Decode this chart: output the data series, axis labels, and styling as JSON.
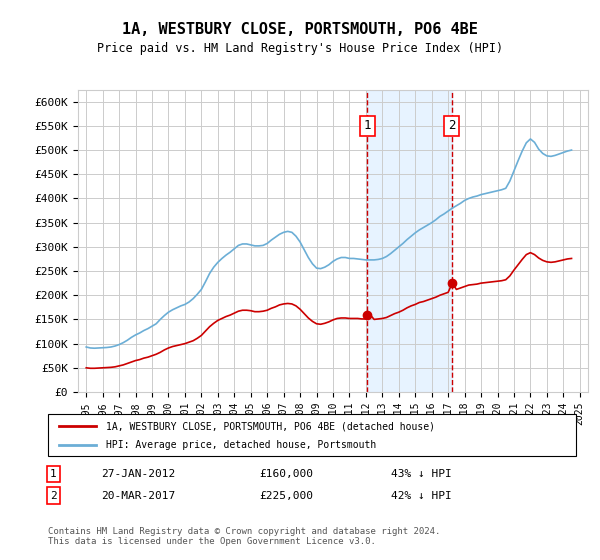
{
  "title": "1A, WESTBURY CLOSE, PORTSMOUTH, PO6 4BE",
  "subtitle": "Price paid vs. HM Land Registry's House Price Index (HPI)",
  "ylabel_ticks": [
    "£0",
    "£50K",
    "£100K",
    "£150K",
    "£200K",
    "£250K",
    "£300K",
    "£350K",
    "£400K",
    "£450K",
    "£500K",
    "£550K",
    "£600K"
  ],
  "ytick_values": [
    0,
    50000,
    100000,
    150000,
    200000,
    250000,
    300000,
    350000,
    400000,
    450000,
    500000,
    550000,
    600000
  ],
  "ylim": [
    0,
    625000
  ],
  "xlim_start": 1994.5,
  "xlim_end": 2025.5,
  "xtick_years": [
    1995,
    1996,
    1997,
    1998,
    1999,
    2000,
    2001,
    2002,
    2003,
    2004,
    2005,
    2006,
    2007,
    2008,
    2009,
    2010,
    2011,
    2012,
    2013,
    2014,
    2015,
    2016,
    2017,
    2018,
    2019,
    2020,
    2021,
    2022,
    2023,
    2024,
    2025
  ],
  "hpi_color": "#6baed6",
  "price_color": "#cc0000",
  "grid_color": "#cccccc",
  "bg_color": "#ffffff",
  "shade_color": "#ddeeff",
  "transaction1": {
    "date": 2012.07,
    "value": 160000,
    "label": "1",
    "line_color": "#cc0000"
  },
  "transaction2": {
    "date": 2017.22,
    "value": 225000,
    "label": "2",
    "line_color": "#cc0000"
  },
  "legend_label_price": "1A, WESTBURY CLOSE, PORTSMOUTH, PO6 4BE (detached house)",
  "legend_label_hpi": "HPI: Average price, detached house, Portsmouth",
  "note1_label": "1",
  "note1_date": "27-JAN-2012",
  "note1_price": "£160,000",
  "note1_hpi": "43% ↓ HPI",
  "note2_label": "2",
  "note2_date": "20-MAR-2017",
  "note2_price": "£225,000",
  "note2_hpi": "42% ↓ HPI",
  "footer": "Contains HM Land Registry data © Crown copyright and database right 2024.\nThis data is licensed under the Open Government Licence v3.0.",
  "hpi_data_x": [
    1995.0,
    1995.25,
    1995.5,
    1995.75,
    1996.0,
    1996.25,
    1996.5,
    1996.75,
    1997.0,
    1997.25,
    1997.5,
    1997.75,
    1998.0,
    1998.25,
    1998.5,
    1998.75,
    1999.0,
    1999.25,
    1999.5,
    1999.75,
    2000.0,
    2000.25,
    2000.5,
    2000.75,
    2001.0,
    2001.25,
    2001.5,
    2001.75,
    2002.0,
    2002.25,
    2002.5,
    2002.75,
    2003.0,
    2003.25,
    2003.5,
    2003.75,
    2004.0,
    2004.25,
    2004.5,
    2004.75,
    2005.0,
    2005.25,
    2005.5,
    2005.75,
    2006.0,
    2006.25,
    2006.5,
    2006.75,
    2007.0,
    2007.25,
    2007.5,
    2007.75,
    2008.0,
    2008.25,
    2008.5,
    2008.75,
    2009.0,
    2009.25,
    2009.5,
    2009.75,
    2010.0,
    2010.25,
    2010.5,
    2010.75,
    2011.0,
    2011.25,
    2011.5,
    2011.75,
    2012.0,
    2012.25,
    2012.5,
    2012.75,
    2013.0,
    2013.25,
    2013.5,
    2013.75,
    2014.0,
    2014.25,
    2014.5,
    2014.75,
    2015.0,
    2015.25,
    2015.5,
    2015.75,
    2016.0,
    2016.25,
    2016.5,
    2016.75,
    2017.0,
    2017.25,
    2017.5,
    2017.75,
    2018.0,
    2018.25,
    2018.5,
    2018.75,
    2019.0,
    2019.25,
    2019.5,
    2019.75,
    2020.0,
    2020.25,
    2020.5,
    2020.75,
    2021.0,
    2021.25,
    2021.5,
    2021.75,
    2022.0,
    2022.25,
    2022.5,
    2022.75,
    2023.0,
    2023.25,
    2023.5,
    2023.75,
    2024.0,
    2024.25,
    2024.5
  ],
  "hpi_data_y": [
    93000,
    91000,
    90500,
    91000,
    91500,
    92000,
    93000,
    95000,
    98000,
    102000,
    107000,
    113000,
    118000,
    122000,
    127000,
    131000,
    136000,
    141000,
    150000,
    158000,
    165000,
    170000,
    174000,
    178000,
    181000,
    186000,
    193000,
    202000,
    212000,
    228000,
    245000,
    258000,
    268000,
    276000,
    283000,
    289000,
    296000,
    303000,
    306000,
    306000,
    304000,
    302000,
    302000,
    303000,
    307000,
    314000,
    320000,
    326000,
    330000,
    332000,
    330000,
    322000,
    310000,
    294000,
    278000,
    265000,
    256000,
    255000,
    258000,
    263000,
    270000,
    275000,
    278000,
    278000,
    276000,
    276000,
    275000,
    274000,
    273000,
    273000,
    273000,
    274000,
    276000,
    280000,
    286000,
    293000,
    300000,
    307000,
    315000,
    322000,
    329000,
    335000,
    340000,
    345000,
    350000,
    356000,
    363000,
    368000,
    374000,
    380000,
    385000,
    390000,
    396000,
    400000,
    403000,
    405000,
    408000,
    410000,
    412000,
    414000,
    416000,
    418000,
    421000,
    436000,
    457000,
    478000,
    498000,
    515000,
    523000,
    516000,
    502000,
    493000,
    488000,
    487000,
    489000,
    492000,
    495000,
    498000,
    500000
  ],
  "price_data_x": [
    1995.0,
    1995.25,
    1995.5,
    1995.75,
    1996.0,
    1996.25,
    1996.5,
    1996.75,
    1997.0,
    1997.25,
    1997.5,
    1997.75,
    1998.0,
    1998.25,
    1998.5,
    1998.75,
    1999.0,
    1999.25,
    1999.5,
    1999.75,
    2000.0,
    2000.25,
    2000.5,
    2000.75,
    2001.0,
    2001.25,
    2001.5,
    2001.75,
    2002.0,
    2002.25,
    2002.5,
    2002.75,
    2003.0,
    2003.25,
    2003.5,
    2003.75,
    2004.0,
    2004.25,
    2004.5,
    2004.75,
    2005.0,
    2005.25,
    2005.5,
    2005.75,
    2006.0,
    2006.25,
    2006.5,
    2006.75,
    2007.0,
    2007.25,
    2007.5,
    2007.75,
    2008.0,
    2008.25,
    2008.5,
    2008.75,
    2009.0,
    2009.25,
    2009.5,
    2009.75,
    2010.0,
    2010.25,
    2010.5,
    2010.75,
    2011.0,
    2011.25,
    2011.5,
    2011.75,
    2012.0,
    2012.25,
    2012.5,
    2012.75,
    2013.0,
    2013.25,
    2013.5,
    2013.75,
    2014.0,
    2014.25,
    2014.5,
    2014.75,
    2015.0,
    2015.25,
    2015.5,
    2015.75,
    2016.0,
    2016.25,
    2016.5,
    2016.75,
    2017.0,
    2017.25,
    2017.5,
    2017.75,
    2018.0,
    2018.25,
    2018.5,
    2018.75,
    2019.0,
    2019.25,
    2019.5,
    2019.75,
    2020.0,
    2020.25,
    2020.5,
    2020.75,
    2021.0,
    2021.25,
    2021.5,
    2021.75,
    2022.0,
    2022.25,
    2022.5,
    2022.75,
    2023.0,
    2023.25,
    2023.5,
    2023.75,
    2024.0,
    2024.25,
    2024.5
  ],
  "price_data_y": [
    50000,
    49000,
    49000,
    49500,
    50000,
    50500,
    51000,
    52000,
    54000,
    56000,
    59000,
    62000,
    65000,
    67000,
    70000,
    72000,
    75000,
    78000,
    82000,
    87000,
    91000,
    94000,
    96000,
    98000,
    100000,
    103000,
    106000,
    111000,
    117000,
    126000,
    135000,
    142000,
    148000,
    152000,
    156000,
    159000,
    163000,
    167000,
    169000,
    169000,
    168000,
    166000,
    166000,
    167000,
    169000,
    173000,
    176000,
    180000,
    182000,
    183000,
    182000,
    178000,
    171000,
    162000,
    153000,
    146000,
    141000,
    140000,
    142000,
    145000,
    149000,
    152000,
    153000,
    153000,
    152000,
    152000,
    152000,
    151000,
    151000,
    160000,
    150000,
    151000,
    152000,
    154000,
    158000,
    162000,
    165000,
    169000,
    174000,
    178000,
    181000,
    185000,
    187000,
    190000,
    193000,
    196000,
    200000,
    203000,
    206000,
    225000,
    212000,
    215000,
    218000,
    221000,
    222000,
    223000,
    225000,
    226000,
    227000,
    228000,
    229000,
    230000,
    232000,
    240000,
    252000,
    263000,
    274000,
    284000,
    288000,
    284000,
    277000,
    272000,
    269000,
    268000,
    269000,
    271000,
    273000,
    275000,
    276000
  ]
}
